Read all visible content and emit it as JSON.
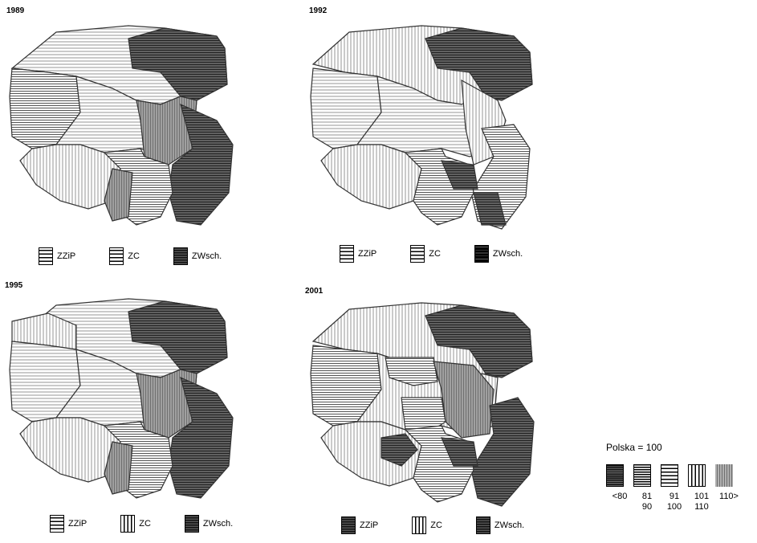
{
  "panels": [
    {
      "year": "1989",
      "legend": [
        {
          "label": "ZZiP",
          "pattern": "h-open"
        },
        {
          "label": "ZC",
          "pattern": "h-open"
        },
        {
          "label": "ZWsch.",
          "pattern": "dense"
        }
      ]
    },
    {
      "year": "1992",
      "legend": [
        {
          "label": "ZZiP",
          "pattern": "h-open"
        },
        {
          "label": "ZC",
          "pattern": "h-open"
        },
        {
          "label": "ZWsch.",
          "pattern": "black"
        }
      ]
    },
    {
      "year": "1995",
      "legend": [
        {
          "label": "ZZiP",
          "pattern": "h-open"
        },
        {
          "label": "ZC",
          "pattern": "v-open"
        },
        {
          "label": "ZWsch.",
          "pattern": "dense"
        }
      ]
    },
    {
      "year": "2001",
      "legend": [
        {
          "label": "ZZiP",
          "pattern": "dense"
        },
        {
          "label": "ZC",
          "pattern": "v-open"
        },
        {
          "label": "ZWsch.",
          "pattern": "dense"
        }
      ]
    }
  ],
  "legend": {
    "title": "Polska = 100",
    "classes": [
      {
        "label1": "<80",
        "label2": "",
        "pattern": "dark"
      },
      {
        "label1": "81",
        "label2": "90",
        "pattern": "h-med"
      },
      {
        "label1": "91",
        "label2": "100",
        "pattern": "h-open"
      },
      {
        "label1": "101",
        "label2": "110",
        "pattern": "v-open"
      },
      {
        "label1": "110>",
        "label2": "",
        "pattern": "v-grey"
      }
    ]
  },
  "colors": {
    "dark": "#555555",
    "medium": "#8a8a8a",
    "light": "#bdbdbd",
    "lightest": "#d9d9d9",
    "border": "#3a3a3a"
  }
}
